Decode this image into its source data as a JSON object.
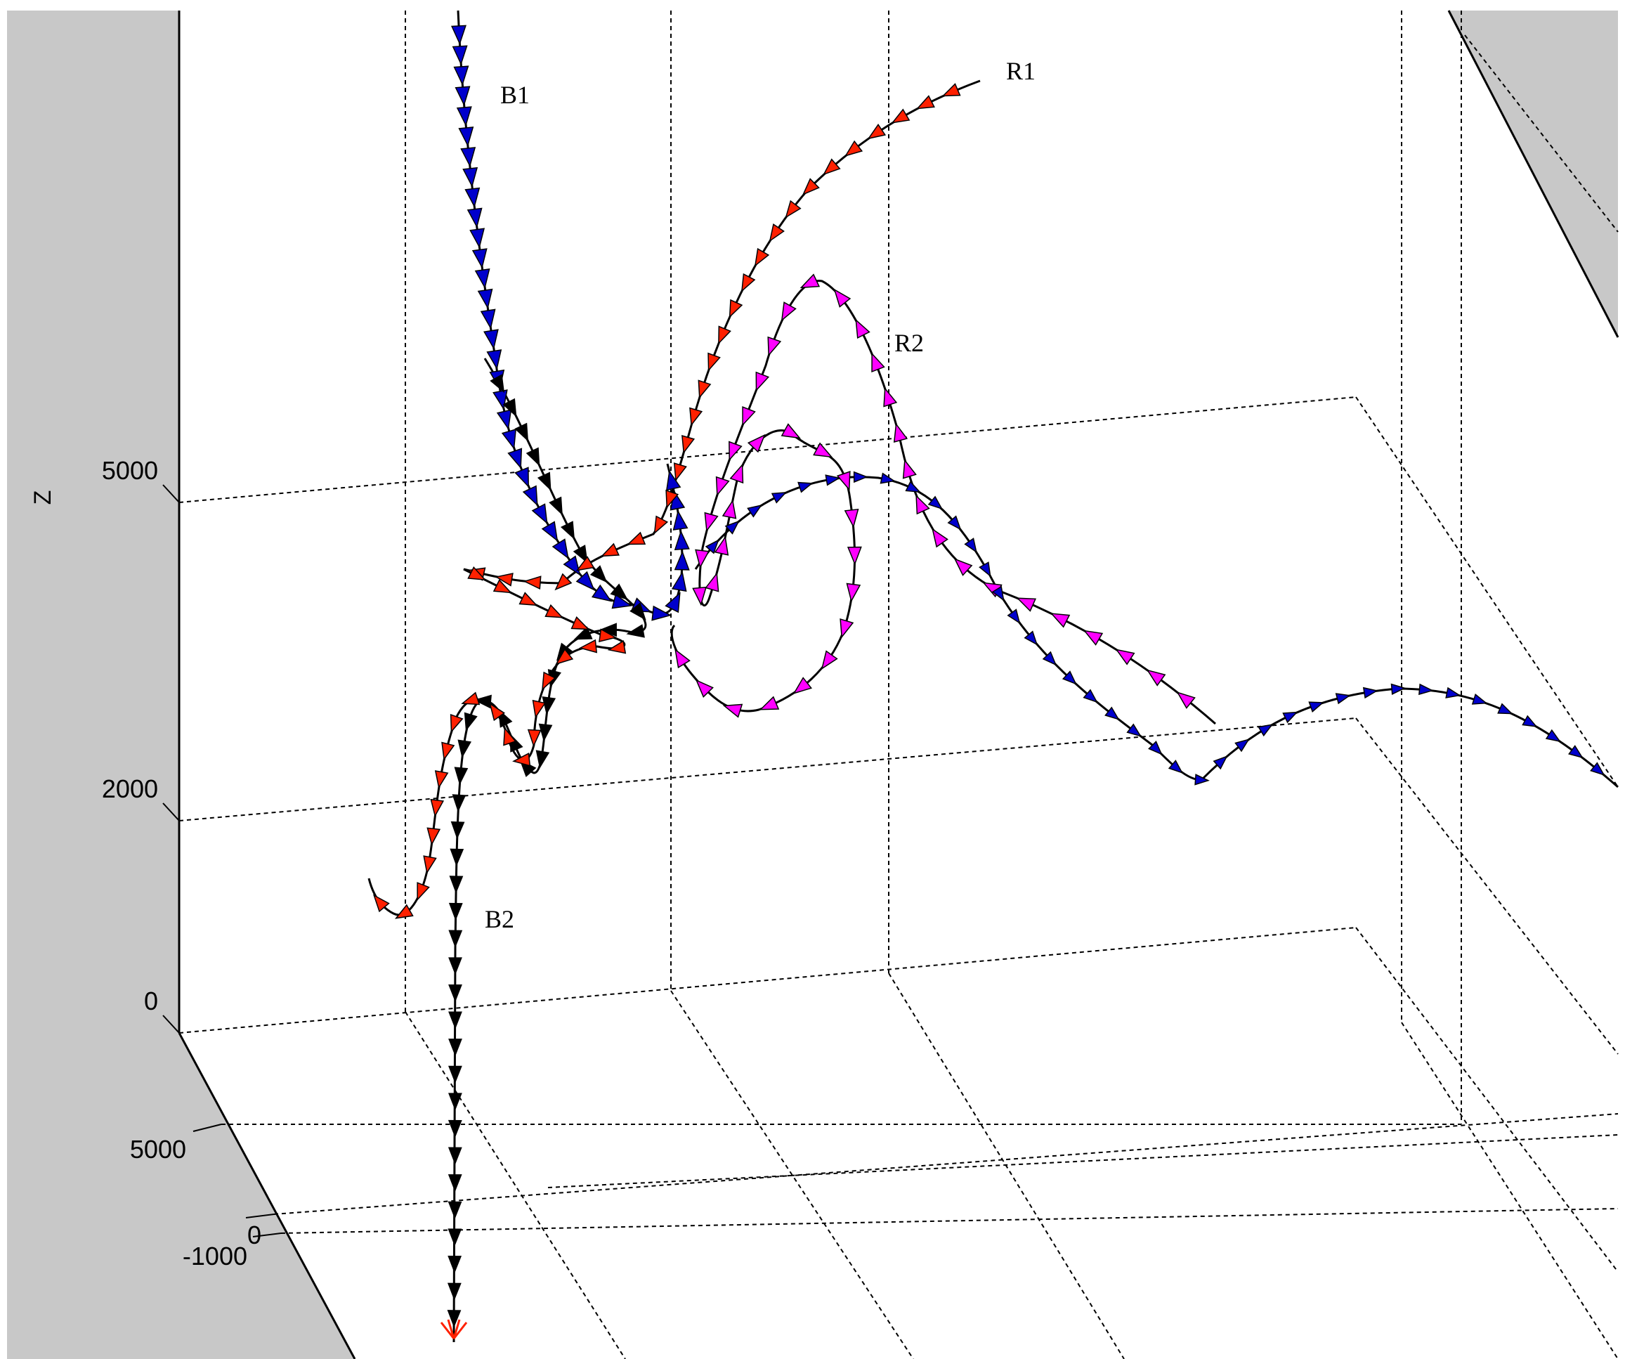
{
  "chart_data": {
    "type": "line",
    "projection": "3d",
    "title": "",
    "xlabel": "",
    "ylabel": "",
    "zlabel": "Z",
    "z_ticks": [
      "5000",
      "2000",
      "0"
    ],
    "y_ticks": [
      "5000",
      "0",
      "-1000"
    ],
    "grid": true,
    "colors": {
      "background_panel": "#c8c8c8",
      "B1": "#0000cc",
      "B2": "#000000",
      "R1": "#ff2000",
      "R2": "#ff00ff"
    },
    "series": [
      {
        "name": "B1",
        "color": "#0000cc",
        "marker": "arrow-cone",
        "z_approx": [
          9500,
          9000,
          8000,
          7000,
          6500,
          6000,
          5200,
          4500,
          4300,
          4500,
          4800,
          4600,
          4100,
          3800,
          3500,
          3600,
          4200,
          4300
        ]
      },
      {
        "name": "B2",
        "color": "#000000",
        "marker": "arrow-cone",
        "z_approx": [
          6200,
          5500,
          4800,
          4300,
          3500,
          3000,
          2800,
          2400,
          1800,
          1000,
          0,
          -1000,
          -2000
        ]
      },
      {
        "name": "R1",
        "color": "#ff2000",
        "marker": "arrow-cone",
        "z_approx": [
          9000,
          8600,
          7800,
          6700,
          5600,
          4600,
          4200,
          4500,
          4000,
          3800,
          3300,
          2600,
          2300,
          1900,
          1200
        ]
      },
      {
        "name": "R2",
        "color": "#ff00ff",
        "marker": "arrow-cone",
        "z_approx": [
          7000,
          6200,
          5000,
          4200,
          4600,
          3800,
          3300,
          3900,
          4800,
          3900,
          3000,
          3600,
          3700,
          3200,
          2900
        ]
      }
    ]
  }
}
